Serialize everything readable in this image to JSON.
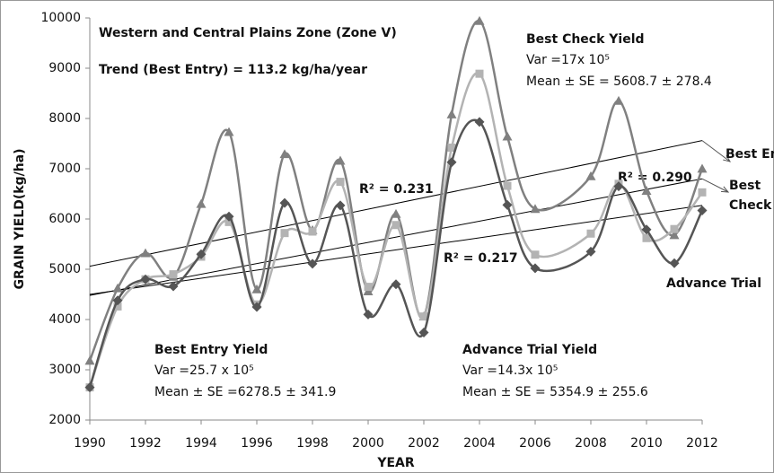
{
  "chart_data": {
    "type": "line",
    "xlabel": "YEAR",
    "ylabel": "GRAIN YIELD(kg/ha)",
    "x": [
      1990,
      1991,
      1992,
      1993,
      1994,
      1995,
      1996,
      1997,
      1998,
      1999,
      2000,
      2001,
      2002,
      2003,
      2004,
      2005,
      2006,
      2008,
      2009,
      2010,
      2011,
      2012
    ],
    "xlim": [
      1990,
      2012
    ],
    "xticks": [
      1990,
      1992,
      1994,
      1996,
      1998,
      2000,
      2002,
      2004,
      2006,
      2008,
      2010,
      2012
    ],
    "ylim": [
      2000,
      10000
    ],
    "yticks": [
      2000,
      3000,
      4000,
      5000,
      6000,
      7000,
      8000,
      9000,
      10000
    ],
    "series": [
      {
        "name": "Best Entry",
        "color": "#808080",
        "marker": "triangle",
        "end_label": [
          "Best Entry"
        ],
        "values": [
          3180,
          4620,
          5320,
          4850,
          6300,
          7730,
          4600,
          7290,
          5780,
          7160,
          4560,
          6100,
          4060,
          8080,
          9940,
          7640,
          6200,
          6850,
          8350,
          6560,
          5680,
          7000
        ],
        "trend": [
          5060,
          7560
        ],
        "r2_label": "R² = 0.231"
      },
      {
        "name": "Best Check",
        "color": "#b3b3b3",
        "marker": "square",
        "end_label": [
          "Best",
          "Check"
        ],
        "values": [
          2650,
          4260,
          4800,
          4900,
          5250,
          5940,
          4300,
          5720,
          5750,
          6740,
          4650,
          5880,
          4060,
          7420,
          8890,
          6660,
          5290,
          5710,
          6700,
          5620,
          5800,
          6530
        ],
        "trend": [
          4480,
          6800
        ],
        "r2_label": "R² = 0.290"
      },
      {
        "name": "Advance Trial",
        "color": "#555555",
        "marker": "diamond",
        "end_label": [
          "Advance Trial"
        ],
        "values": [
          2650,
          4380,
          4800,
          4660,
          5300,
          6050,
          4250,
          6320,
          5110,
          6270,
          4100,
          4700,
          3740,
          7130,
          7930,
          6280,
          5020,
          5350,
          6650,
          5790,
          5120,
          6170
        ],
        "trend": [
          4500,
          6270
        ],
        "r2_label": "R² = 0.217"
      }
    ],
    "annotations": [
      "Western and Central Plains Zone (Zone V)",
      "Trend (Best Entry) = 113.2 kg/ha/year",
      "Best Check  Yield",
      "Var =17x 10⁵",
      "Mean  ± SE = 5608.7 ± 278.4",
      "Best Entry Yield",
      "Var =25.7 x 10⁵",
      "Mean  ± SE =6278.5 ± 341.9",
      "Advance Trial Yield",
      "Var =14.3x 10⁵",
      "Mean  ± SE = 5354.9 ± 255.6"
    ]
  }
}
